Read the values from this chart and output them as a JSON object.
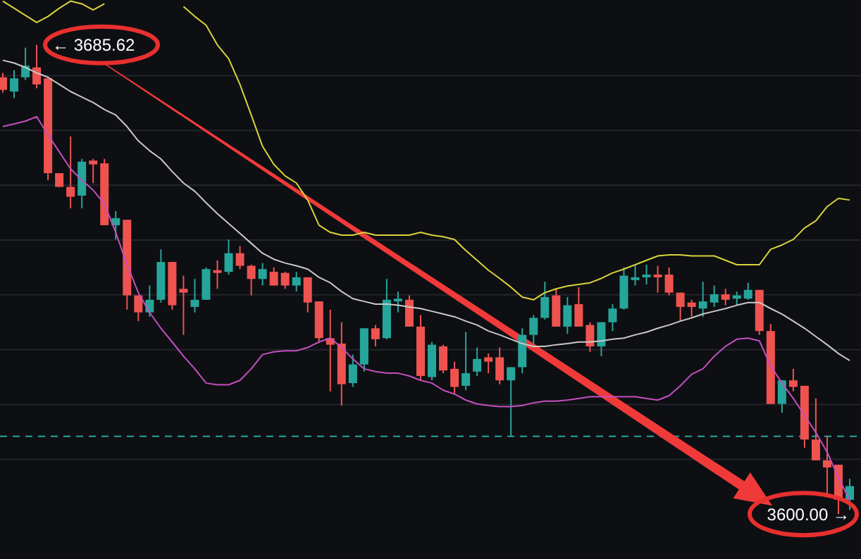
{
  "chart_data": {
    "type": "candlestick",
    "categories": [
      null,
      null,
      null,
      null,
      null,
      null,
      null,
      null,
      null,
      null,
      null,
      null,
      null,
      null,
      null,
      null,
      null,
      null,
      null,
      null,
      null,
      null,
      null,
      null,
      null,
      null,
      null,
      null,
      null,
      null,
      null,
      null,
      null,
      null,
      null,
      null,
      null,
      null,
      null,
      null,
      null,
      null,
      null,
      null,
      null,
      null,
      null,
      null,
      null,
      null,
      null,
      null,
      null,
      null,
      null,
      null,
      null,
      null,
      null,
      null,
      null,
      null,
      null,
      null,
      null,
      null,
      null,
      null,
      null,
      null,
      null,
      null,
      null,
      null,
      null,
      null
    ],
    "ohlc": [
      [
        3679.7,
        3680.5,
        3676.9,
        3677.4
      ],
      [
        3677.1,
        3681.0,
        3675.9,
        3679.5
      ],
      [
        3679.7,
        3685.1,
        3679.2,
        3681.8
      ],
      [
        3681.5,
        3685.62,
        3677.7,
        3678.4
      ],
      [
        3679.5,
        3679.5,
        3660.9,
        3662.2
      ],
      [
        3662.2,
        3662.2,
        3659.7,
        3659.7
      ],
      [
        3659.7,
        3668.9,
        3655.8,
        3657.9
      ],
      [
        3658.1,
        3664.8,
        3655.8,
        3664.3
      ],
      [
        3664.5,
        3664.8,
        3660.4,
        3663.8
      ],
      [
        3664.0,
        3664.8,
        3652.7,
        3652.7
      ],
      [
        3652.7,
        3655.3,
        3650.1,
        3654.0
      ],
      [
        3653.7,
        3653.7,
        3637.3,
        3639.9
      ],
      [
        3639.9,
        3639.9,
        3635.2,
        3636.8
      ],
      [
        3636.8,
        3641.7,
        3636.0,
        3639.1
      ],
      [
        3639.1,
        3648.3,
        3638.6,
        3646.0
      ],
      [
        3646.0,
        3646.0,
        3637.3,
        3638.1
      ],
      [
        3641.1,
        3643.5,
        3632.7,
        3640.4
      ],
      [
        3637.8,
        3642.9,
        3636.8,
        3639.1
      ],
      [
        3639.1,
        3645.0,
        3639.1,
        3644.7
      ],
      [
        3644.5,
        3646.3,
        3641.1,
        3644.0
      ],
      [
        3644.2,
        3650.1,
        3643.7,
        3647.6
      ],
      [
        3647.6,
        3648.9,
        3644.7,
        3645.3
      ],
      [
        3645.3,
        3645.5,
        3639.9,
        3642.9
      ],
      [
        3642.9,
        3645.8,
        3641.7,
        3644.7
      ],
      [
        3644.2,
        3645.0,
        3641.7,
        3641.7
      ],
      [
        3644.0,
        3644.2,
        3641.1,
        3641.7
      ],
      [
        3641.7,
        3644.2,
        3640.6,
        3643.2
      ],
      [
        3643.2,
        3643.2,
        3636.8,
        3638.6
      ],
      [
        3638.8,
        3638.8,
        3631.4,
        3632.1
      ],
      [
        3632.1,
        3637.3,
        3622.4,
        3630.9
      ],
      [
        3631.1,
        3635.0,
        3619.8,
        3623.7
      ],
      [
        3623.9,
        3629.1,
        3623.2,
        3627.3
      ],
      [
        3627.3,
        3633.9,
        3626.0,
        3633.9
      ],
      [
        3633.9,
        3634.5,
        3630.6,
        3631.9
      ],
      [
        3632.1,
        3642.9,
        3631.9,
        3639.1
      ],
      [
        3638.8,
        3640.6,
        3636.8,
        3639.3
      ],
      [
        3639.1,
        3639.9,
        3634.2,
        3634.2
      ],
      [
        3634.2,
        3636.3,
        3624.4,
        3625.2
      ],
      [
        3625.0,
        3631.4,
        3624.4,
        3630.9
      ],
      [
        3630.6,
        3630.9,
        3625.7,
        3626.2
      ],
      [
        3626.5,
        3627.8,
        3621.9,
        3623.2
      ],
      [
        3623.4,
        3633.2,
        3622.6,
        3625.7
      ],
      [
        3626.0,
        3630.4,
        3625.2,
        3628.3
      ],
      [
        3628.6,
        3629.3,
        3625.7,
        3627.8
      ],
      [
        3628.6,
        3630.4,
        3623.7,
        3624.4
      ],
      [
        3624.4,
        3626.8,
        3614.2,
        3626.8
      ],
      [
        3626.8,
        3633.9,
        3625.7,
        3632.7
      ],
      [
        3632.7,
        3636.3,
        3630.9,
        3635.8
      ],
      [
        3635.8,
        3642.4,
        3635.5,
        3639.6
      ],
      [
        3639.9,
        3641.1,
        3634.2,
        3634.2
      ],
      [
        3634.2,
        3639.6,
        3632.9,
        3638.1
      ],
      [
        3638.3,
        3641.4,
        3634.2,
        3634.2
      ],
      [
        3634.5,
        3635.0,
        3629.6,
        3630.6
      ],
      [
        3630.6,
        3635.0,
        3628.8,
        3635.0
      ],
      [
        3635.0,
        3638.3,
        3633.4,
        3637.5
      ],
      [
        3637.5,
        3645.0,
        3637.3,
        3643.5
      ],
      [
        3642.7,
        3645.5,
        3641.7,
        3643.2
      ],
      [
        3643.2,
        3645.5,
        3641.9,
        3643.7
      ],
      [
        3643.7,
        3645.3,
        3640.4,
        3643.2
      ],
      [
        3643.7,
        3645.0,
        3639.9,
        3640.4
      ],
      [
        3640.4,
        3640.4,
        3635.2,
        3637.8
      ],
      [
        3638.6,
        3639.1,
        3636.0,
        3637.8
      ],
      [
        3637.5,
        3642.4,
        3636.0,
        3638.8
      ],
      [
        3638.6,
        3641.7,
        3637.8,
        3640.1
      ],
      [
        3640.1,
        3641.1,
        3638.1,
        3639.1
      ],
      [
        3639.3,
        3640.6,
        3638.1,
        3639.9
      ],
      [
        3639.3,
        3642.2,
        3639.1,
        3640.9
      ],
      [
        3640.9,
        3640.9,
        3632.7,
        3633.4
      ],
      [
        3633.4,
        3634.7,
        3620.1,
        3620.1
      ],
      [
        3620.1,
        3624.4,
        3618.5,
        3624.4
      ],
      [
        3624.4,
        3626.5,
        3622.4,
        3623.2
      ],
      [
        3623.4,
        3623.4,
        3612.1,
        3613.6
      ],
      [
        3613.6,
        3621.1,
        3609.8,
        3609.8
      ],
      [
        3609.8,
        3614.2,
        3603.4,
        3608.5
      ],
      [
        3609.0,
        3609.0,
        3600.0,
        3602.6
      ],
      [
        3602.6,
        3606.4,
        3600.8,
        3605.1
      ]
    ],
    "colors": [
      "#ef5350",
      "#26a69a",
      "#26a69a",
      "#ef5350",
      "#ef5350",
      "#ef5350",
      "#ef5350",
      "#26a69a",
      "#ef5350",
      "#ef5350",
      "#26a69a",
      "#ef5350",
      "#ef5350",
      "#26a69a",
      "#26a69a",
      "#ef5350",
      "#ef5350",
      "#26a69a",
      "#26a69a",
      "#ef5350",
      "#26a69a",
      "#ef5350",
      "#ef5350",
      "#26a69a",
      "#ef5350",
      "#ef5350",
      "#26a69a",
      "#ef5350",
      "#ef5350",
      "#ef5350",
      "#ef5350",
      "#26a69a",
      "#26a69a",
      "#ef5350",
      "#26a69a",
      "#26a69a",
      "#ef5350",
      "#ef5350",
      "#26a69a",
      "#ef5350",
      "#ef5350",
      "#26a69a",
      "#26a69a",
      "#ef5350",
      "#ef5350",
      "#26a69a",
      "#26a69a",
      "#26a69a",
      "#26a69a",
      "#ef5350",
      "#26a69a",
      "#ef5350",
      "#ef5350",
      "#26a69a",
      "#26a69a",
      "#26a69a",
      "#26a69a",
      "#26a69a",
      "#ef5350",
      "#ef5350",
      "#ef5350",
      "#ef5350",
      "#26a69a",
      "#26a69a",
      "#ef5350",
      "#26a69a",
      "#26a69a",
      "#ef5350",
      "#ef5350",
      "#26a69a",
      "#ef5350",
      "#ef5350",
      "#ef5350",
      "#ef5350",
      "#ef5350",
      "#26a69a"
    ],
    "series": [
      {
        "type": "line",
        "color": "#d8d43a",
        "values": [
          3693.6,
          3692.3,
          3691.0,
          3689.7,
          3690.8,
          3692.3,
          3693.6,
          3693.1,
          3692.0,
          3693.1,
          null,
          null,
          null,
          null,
          null,
          null,
          3692.6,
          3690.8,
          3689.2,
          3685.6,
          3683.1,
          3678.4,
          3672.8,
          3667.1,
          3663.8,
          3661.7,
          3660.4,
          3657.3,
          3652.7,
          3651.4,
          3650.9,
          3650.9,
          3651.4,
          3650.9,
          3650.9,
          3650.9,
          3650.9,
          3651.4,
          3650.9,
          3650.6,
          3650.1,
          3648.1,
          3646.3,
          3644.5,
          3643.0,
          3641.4,
          3639.6,
          3639.1,
          3640.4,
          3641.1,
          3641.6,
          3641.9,
          3642.2,
          3643.0,
          3644.0,
          3644.7,
          3645.5,
          3646.3,
          3647.1,
          3647.3,
          3647.3,
          3647.1,
          3647.1,
          3647.1,
          3646.3,
          3645.5,
          3645.5,
          3645.5,
          3648.3,
          3649.1,
          3650.1,
          3652.2,
          3653.5,
          3656.1,
          3657.6,
          3657.3
        ]
      },
      {
        "type": "line",
        "color": "#c9c9c9",
        "values": [
          3682.8,
          3682.3,
          3681.5,
          3680.5,
          3679.7,
          3678.4,
          3677.1,
          3676.1,
          3675.1,
          3673.8,
          3672.8,
          3670.7,
          3668.1,
          3666.3,
          3664.8,
          3662.5,
          3660.4,
          3658.9,
          3656.8,
          3654.8,
          3653.0,
          3651.2,
          3649.4,
          3647.6,
          3646.5,
          3645.8,
          3645.3,
          3644.7,
          3643.2,
          3642.2,
          3640.6,
          3639.3,
          3638.8,
          3638.3,
          3638.3,
          3638.1,
          3637.8,
          3637.5,
          3637.0,
          3636.5,
          3636.0,
          3635.2,
          3634.5,
          3633.4,
          3632.7,
          3631.9,
          3631.1,
          3630.6,
          3630.6,
          3630.9,
          3631.1,
          3631.4,
          3631.4,
          3631.6,
          3631.9,
          3632.1,
          3632.7,
          3633.2,
          3633.9,
          3634.5,
          3635.2,
          3635.8,
          3636.5,
          3637.0,
          3637.5,
          3638.1,
          3638.6,
          3638.6,
          3637.5,
          3636.5,
          3635.2,
          3633.9,
          3632.4,
          3630.9,
          3629.3,
          3628.0
        ]
      },
      {
        "type": "line",
        "color": "#c34fbf",
        "values": [
          3670.7,
          3671.2,
          3671.7,
          3672.5,
          3669.2,
          3666.1,
          3663.0,
          3660.9,
          3659.1,
          3656.6,
          3651.4,
          3645.5,
          3640.4,
          3636.8,
          3633.9,
          3631.4,
          3628.8,
          3626.5,
          3623.9,
          3623.6,
          3623.6,
          3624.4,
          3626.5,
          3629.1,
          3629.6,
          3629.8,
          3629.8,
          3630.4,
          3631.4,
          3632.1,
          3630.4,
          3628.3,
          3626.5,
          3626.0,
          3625.7,
          3625.7,
          3625.2,
          3624.4,
          3623.9,
          3622.6,
          3621.9,
          3620.8,
          3620.1,
          3619.8,
          3619.6,
          3619.6,
          3619.8,
          3620.3,
          3620.6,
          3620.6,
          3620.8,
          3621.1,
          3621.4,
          3621.4,
          3621.4,
          3621.4,
          3621.4,
          3621.1,
          3620.8,
          3621.6,
          3623.4,
          3625.5,
          3626.5,
          3628.8,
          3630.6,
          3631.9,
          3632.1,
          3631.6,
          3627.0,
          3623.9,
          3621.1,
          3618.0,
          3614.9,
          3611.3,
          3606.6,
          3602.6
        ]
      }
    ],
    "ylim": [
      3591.8,
      3693.8
    ],
    "yticks": [
      {
        "value": 3610,
        "label": null
      },
      {
        "value": 3620,
        "label": null
      },
      {
        "value": 3630,
        "label": null
      },
      {
        "value": 3640,
        "label": null
      },
      {
        "value": 3650,
        "label": null
      },
      {
        "value": 3660,
        "label": null
      },
      {
        "value": 3670,
        "label": null
      },
      {
        "value": 3680,
        "label": null
      }
    ],
    "grid": "y",
    "ref_lines": [
      {
        "axis": "y",
        "value": 3614.2,
        "color": "#26a69a",
        "line_style": "dashed"
      }
    ],
    "annotations": [
      "← 3685.62",
      "3600.00 →"
    ]
  }
}
